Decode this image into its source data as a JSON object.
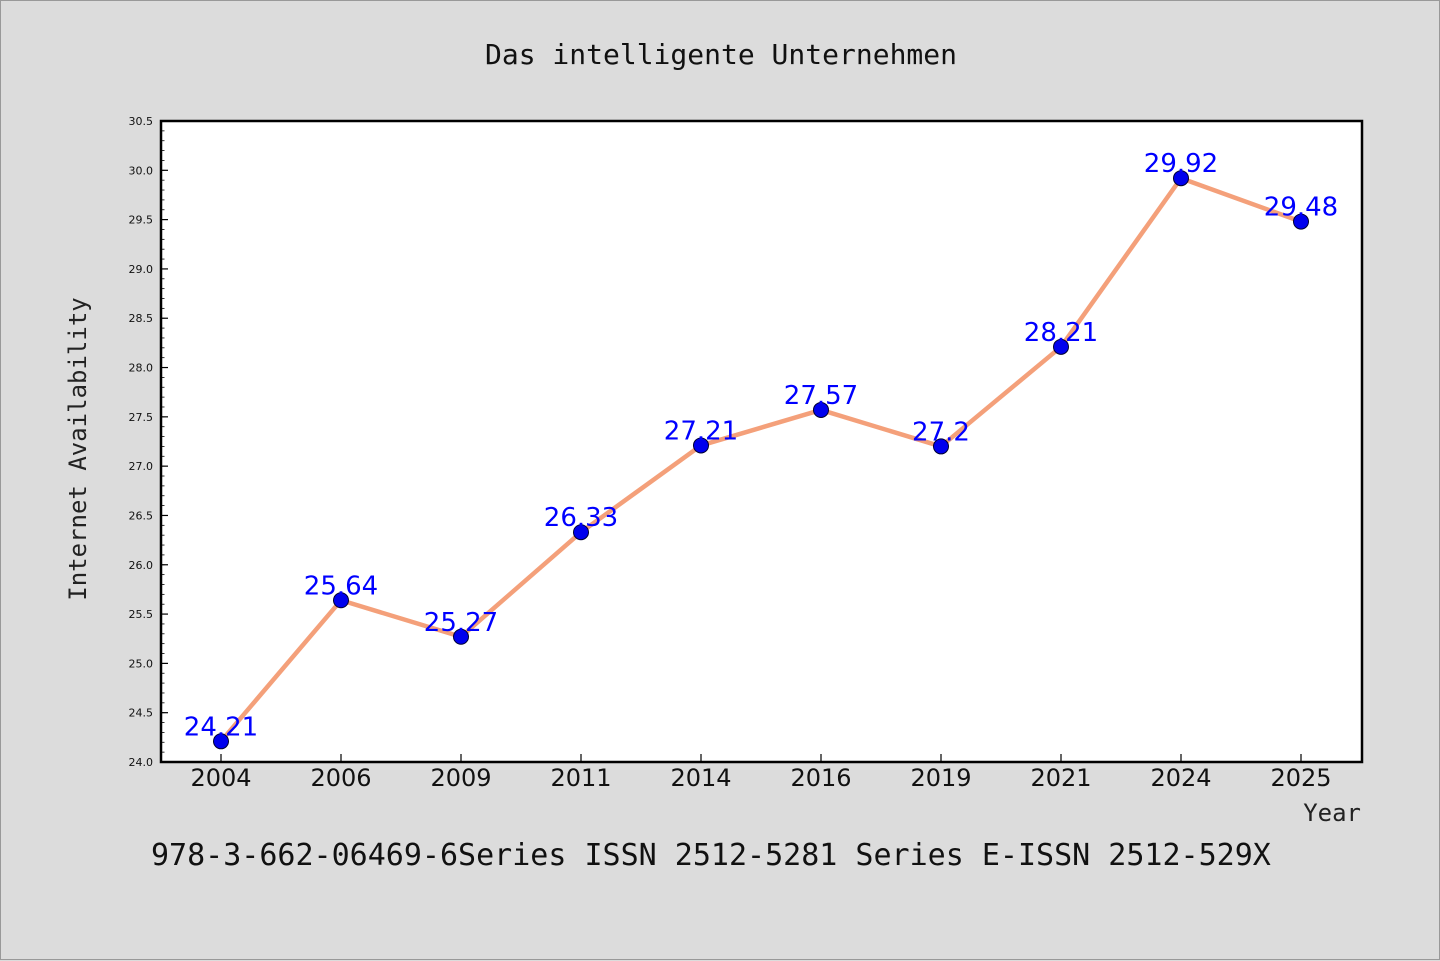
{
  "chart_data": {
    "type": "line",
    "title": "Das intelligente Unternehmen",
    "xlabel": "Year",
    "ylabel": "Internet Availability",
    "categories": [
      "2004",
      "2006",
      "2009",
      "2011",
      "2014",
      "2016",
      "2019",
      "2021",
      "2024",
      "2025"
    ],
    "series": [
      {
        "values": [
          24.21,
          25.64,
          25.27,
          26.33,
          27.21,
          27.57,
          27.2,
          28.21,
          29.92,
          29.48
        ],
        "labels": [
          "24.21",
          "25.64",
          "25.27",
          "26.33",
          "27.21",
          "27.57",
          "27.2",
          "28.21",
          "29.92",
          "29.48"
        ],
        "line_color": "#f4a07a",
        "marker_color": "#0000ee",
        "label_color": "#0000ff"
      }
    ],
    "ylim": [
      24.0,
      30.5
    ],
    "yticks": [
      "24.0",
      "24.5",
      "25.0",
      "25.5",
      "26.0",
      "26.5",
      "27.0",
      "27.5",
      "28.0",
      "28.5",
      "29.0",
      "29.5",
      "30.0",
      "30.5"
    ],
    "grid": false,
    "legend": "none",
    "footer": "978-3-662-06469-6Series ISSN 2512-5281 Series E-ISSN 2512-529X"
  }
}
